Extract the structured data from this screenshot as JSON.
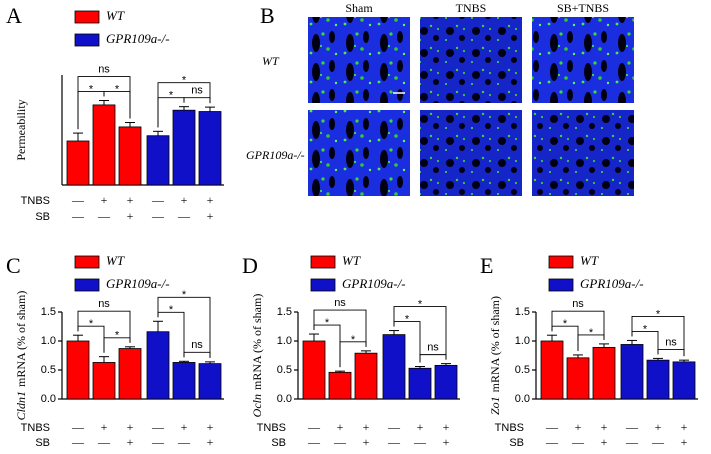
{
  "chart_data": [
    {
      "type": "bar",
      "panel": "A",
      "ylabel": [
        "Permeability"
      ],
      "ylim": [
        0,
        2.5
      ],
      "series": [
        {
          "name": "WT",
          "color": "#ff0000",
          "values": [
            1.0,
            1.82,
            1.32
          ],
          "errors": [
            0.18,
            0.1,
            0.1
          ]
        },
        {
          "name": "GPR109a-/-",
          "color": "#1010c8",
          "values": [
            1.12,
            1.7,
            1.67
          ],
          "errors": [
            0.1,
            0.08,
            0.1
          ]
        }
      ],
      "treatments": [
        {
          "name": "TNBS",
          "values": [
            "—",
            "+",
            "+",
            "—",
            "+",
            "+"
          ]
        },
        {
          "name": "SB",
          "values": [
            "—",
            "—",
            "+",
            "—",
            "—",
            "+"
          ]
        }
      ],
      "comparisons": [
        {
          "bars": [
            0,
            1
          ],
          "label": "*"
        },
        {
          "bars": [
            1,
            2
          ],
          "label": "*"
        },
        {
          "bars": [
            0,
            2
          ],
          "label": "ns"
        },
        {
          "bars": [
            3,
            4
          ],
          "label": "*"
        },
        {
          "bars": [
            4,
            5
          ],
          "label": "ns"
        },
        {
          "bars": [
            3,
            5
          ],
          "label": "*"
        }
      ]
    },
    {
      "type": "bar",
      "panel": "C",
      "ylabel": [
        "Cldn1",
        "mRNA (% of sham)"
      ],
      "ylim": [
        0,
        1.5
      ],
      "yticks": [
        {
          "value": 0,
          "label": "0.0"
        },
        {
          "value": 0.5,
          "label": "0.5"
        },
        {
          "value": 1,
          "label": "1.0"
        },
        {
          "value": 1.5,
          "label": "1.5"
        }
      ],
      "series": [
        {
          "name": "WT",
          "color": "#ff0000",
          "values": [
            1.0,
            0.63,
            0.87
          ],
          "errors": [
            0.1,
            0.1,
            0.03
          ]
        },
        {
          "name": "GPR109a-/-",
          "color": "#1010c8",
          "values": [
            1.16,
            0.63,
            0.61
          ],
          "errors": [
            0.18,
            0.02,
            0.03
          ]
        }
      ],
      "treatments": [
        {
          "name": "TNBS",
          "values": [
            "—",
            "+",
            "+",
            "—",
            "+",
            "+"
          ]
        },
        {
          "name": "SB",
          "values": [
            "—",
            "—",
            "+",
            "—",
            "—",
            "+"
          ]
        }
      ],
      "comparisons": [
        {
          "bars": [
            0,
            1
          ],
          "label": "*"
        },
        {
          "bars": [
            1,
            2
          ],
          "label": "*"
        },
        {
          "bars": [
            0,
            2
          ],
          "label": "ns"
        },
        {
          "bars": [
            3,
            4
          ],
          "label": "*"
        },
        {
          "bars": [
            4,
            5
          ],
          "label": "ns"
        },
        {
          "bars": [
            3,
            5
          ],
          "label": "*"
        }
      ]
    },
    {
      "type": "bar",
      "panel": "D",
      "ylabel": [
        "Ocln",
        "mRNA (% of sham)"
      ],
      "ylim": [
        0,
        1.5
      ],
      "yticks": [
        {
          "value": 0,
          "label": "0.0"
        },
        {
          "value": 0.5,
          "label": "0.5"
        },
        {
          "value": 1,
          "label": "1.0"
        },
        {
          "value": 1.5,
          "label": "1.5"
        }
      ],
      "series": [
        {
          "name": "WT",
          "color": "#ff0000",
          "values": [
            1.0,
            0.46,
            0.79
          ],
          "errors": [
            0.12,
            0.02,
            0.04
          ]
        },
        {
          "name": "GPR109a-/-",
          "color": "#1010c8",
          "values": [
            1.11,
            0.53,
            0.58
          ],
          "errors": [
            0.07,
            0.03,
            0.03
          ]
        }
      ],
      "treatments": [
        {
          "name": "TNBS",
          "values": [
            "—",
            "+",
            "+",
            "—",
            "+",
            "+"
          ]
        },
        {
          "name": "SB",
          "values": [
            "—",
            "—",
            "+",
            "—",
            "—",
            "+"
          ]
        }
      ],
      "comparisons": [
        {
          "bars": [
            0,
            1
          ],
          "label": "*"
        },
        {
          "bars": [
            1,
            2
          ],
          "label": "*"
        },
        {
          "bars": [
            0,
            2
          ],
          "label": "ns"
        },
        {
          "bars": [
            3,
            4
          ],
          "label": "*"
        },
        {
          "bars": [
            4,
            5
          ],
          "label": "ns"
        },
        {
          "bars": [
            3,
            5
          ],
          "label": "*"
        }
      ]
    },
    {
      "type": "bar",
      "panel": "E",
      "ylabel": [
        "Zo1",
        "mRNA (% of sham)"
      ],
      "ylim": [
        0,
        1.5
      ],
      "yticks": [
        {
          "value": 0,
          "label": "0.0"
        },
        {
          "value": 0.5,
          "label": "0.5"
        },
        {
          "value": 1,
          "label": "1.0"
        },
        {
          "value": 1.5,
          "label": "1.5"
        }
      ],
      "series": [
        {
          "name": "WT",
          "color": "#ff0000",
          "values": [
            1.0,
            0.71,
            0.89
          ],
          "errors": [
            0.1,
            0.05,
            0.06
          ]
        },
        {
          "name": "GPR109a-/-",
          "color": "#1010c8",
          "values": [
            0.94,
            0.67,
            0.64
          ],
          "errors": [
            0.07,
            0.03,
            0.03
          ]
        }
      ],
      "treatments": [
        {
          "name": "TNBS",
          "values": [
            "—",
            "+",
            "+",
            "—",
            "+",
            "+"
          ]
        },
        {
          "name": "SB",
          "values": [
            "—",
            "—",
            "+",
            "—",
            "—",
            "+"
          ]
        }
      ],
      "comparisons": [
        {
          "bars": [
            0,
            1
          ],
          "label": "*"
        },
        {
          "bars": [
            1,
            2
          ],
          "label": "*"
        },
        {
          "bars": [
            0,
            2
          ],
          "label": "ns"
        },
        {
          "bars": [
            3,
            4
          ],
          "label": "*"
        },
        {
          "bars": [
            4,
            5
          ],
          "label": "ns"
        },
        {
          "bars": [
            3,
            5
          ],
          "label": "*"
        }
      ]
    }
  ],
  "panel_b": {
    "label": "B",
    "columns": [
      "Sham",
      "TNBS",
      "SB+TNBS"
    ],
    "rows": [
      "WT",
      "GPR109a-/-"
    ]
  }
}
